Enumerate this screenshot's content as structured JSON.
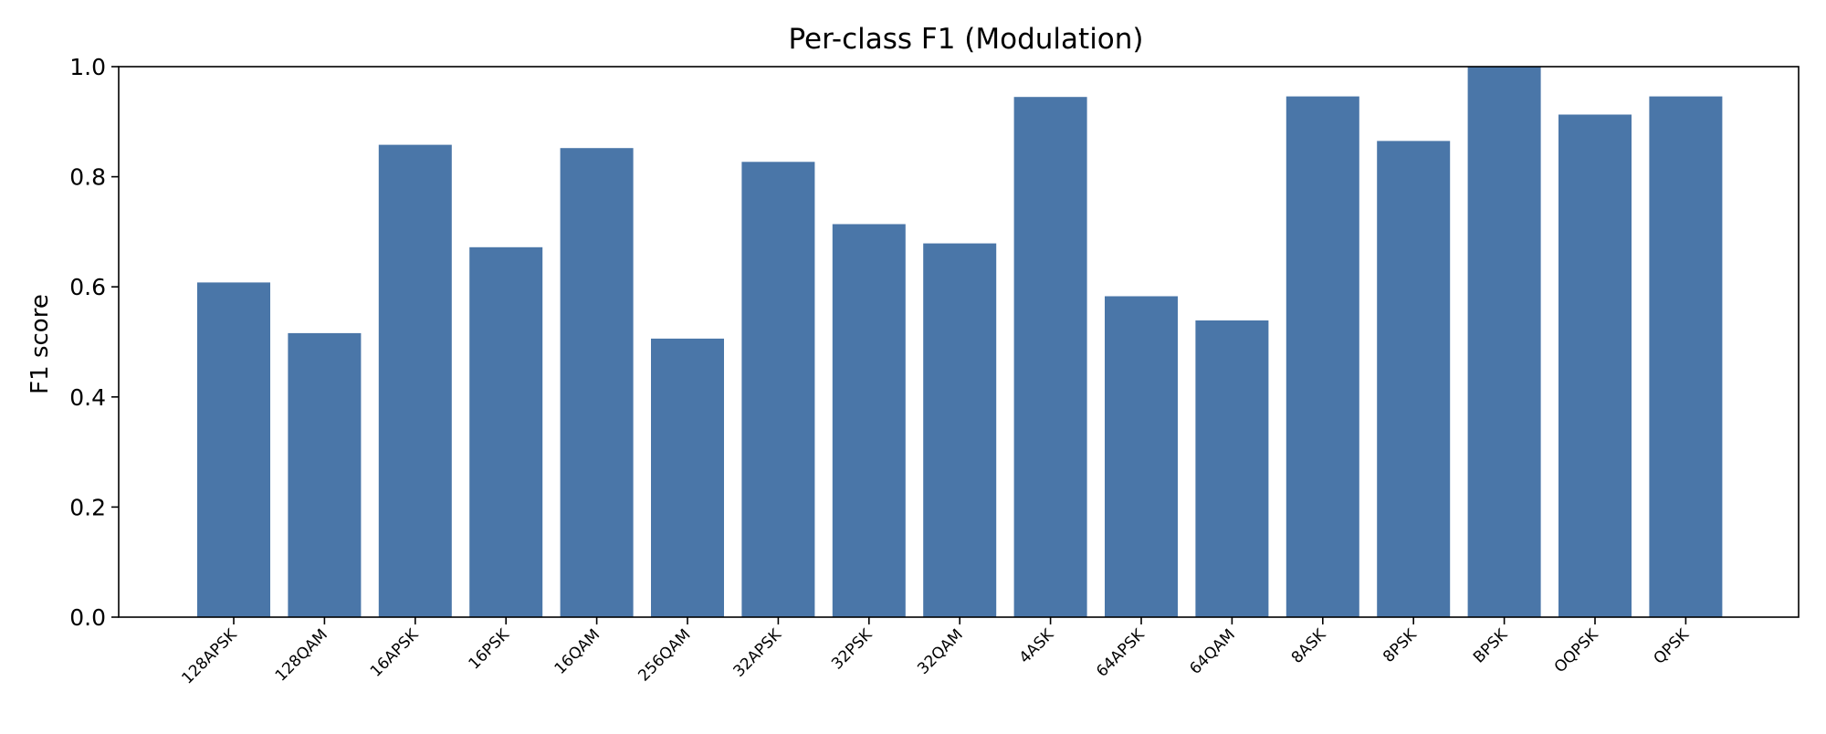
{
  "chart_data": {
    "type": "bar",
    "title": "Per-class F1 (Modulation)",
    "xlabel": "",
    "ylabel": "F1 score",
    "ylim": [
      0,
      1.0
    ],
    "yticks": [
      "0.0",
      "0.2",
      "0.4",
      "0.6",
      "0.8",
      "1.0"
    ],
    "grid": false,
    "legend": "none",
    "bar_color": "#4a76a8",
    "categories": [
      "128APSK",
      "128QAM",
      "16APSK",
      "16PSK",
      "16QAM",
      "256QAM",
      "32APSK",
      "32PSK",
      "32QAM",
      "4ASK",
      "64APSK",
      "64QAM",
      "8ASK",
      "8PSK",
      "BPSK",
      "OQPSK",
      "QPSK"
    ],
    "values": [
      0.608,
      0.516,
      0.858,
      0.672,
      0.852,
      0.506,
      0.827,
      0.714,
      0.679,
      0.945,
      0.583,
      0.539,
      0.946,
      0.865,
      1.0,
      0.913,
      0.946
    ]
  }
}
